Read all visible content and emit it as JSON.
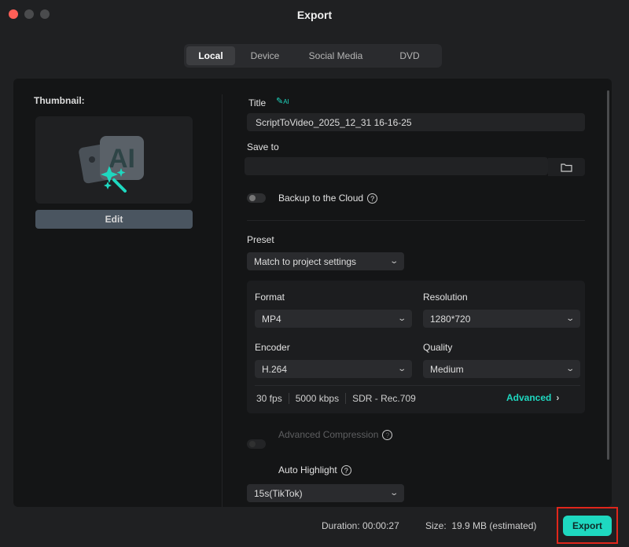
{
  "window": {
    "title": "Export"
  },
  "tabs": [
    {
      "label": "Local",
      "active": true
    },
    {
      "label": "Device"
    },
    {
      "label": "Social Media"
    },
    {
      "label": "DVD"
    }
  ],
  "thumbnail": {
    "label": "Thumbnail:",
    "edit_label": "Edit",
    "icon": "ai-image-magic-icon"
  },
  "title_field": {
    "label": "Title",
    "ai_badge": "AI",
    "value": "ScriptToVideo_2025_12_31 16-16-25"
  },
  "save_to": {
    "label": "Save to",
    "value": ""
  },
  "backup": {
    "label": "Backup to the Cloud",
    "enabled": false
  },
  "preset": {
    "label": "Preset",
    "value": "Match to project settings"
  },
  "format": {
    "label": "Format",
    "value": "MP4"
  },
  "resolution": {
    "label": "Resolution",
    "value": "1280*720"
  },
  "encoder": {
    "label": "Encoder",
    "value": "H.264"
  },
  "quality": {
    "label": "Quality",
    "value": "Medium"
  },
  "summary": {
    "fps": "30 fps",
    "bitrate": "5000 kbps",
    "color": "SDR - Rec.709",
    "advanced_label": "Advanced"
  },
  "advanced_compression": {
    "label": "Advanced Compression",
    "enabled": false
  },
  "auto_highlight": {
    "label": "Auto Highlight",
    "enabled": true,
    "duration_value": "15s(TikTok)"
  },
  "footer": {
    "duration_label": "Duration:",
    "duration": "00:00:27",
    "size_label": "Size:",
    "size": "19.9 MB",
    "size_note": "(estimated)",
    "export_label": "Export"
  },
  "colors": {
    "accent": "#1ed8c0",
    "highlight_box": "#e0261b"
  }
}
